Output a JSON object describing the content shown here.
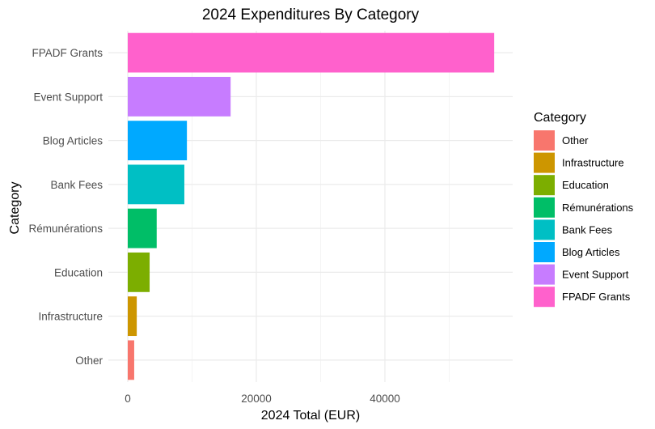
{
  "chart_data": {
    "type": "bar",
    "orientation": "horizontal",
    "title": "2024 Expenditures By Category",
    "xlabel": "2024 Total (EUR)",
    "ylabel": "Category",
    "xlim": [
      0,
      60000
    ],
    "x_ticks": [
      0,
      20000,
      40000
    ],
    "x_minor_ticks": [
      10000,
      30000,
      50000
    ],
    "grid": true,
    "legend": {
      "title": "Category",
      "position": "right"
    },
    "categories": [
      "Other",
      "Infrastructure",
      "Education",
      "Rémunérations",
      "Bank Fees",
      "Blog Articles",
      "Event Support",
      "FPADF Grants"
    ],
    "values": [
      1000,
      1400,
      3400,
      4500,
      8800,
      9200,
      16000,
      57000
    ],
    "colors": [
      "#F8766D",
      "#CD9600",
      "#7CAE00",
      "#00BE67",
      "#00BFC4",
      "#00A9FF",
      "#C77CFF",
      "#FF61CC"
    ]
  }
}
